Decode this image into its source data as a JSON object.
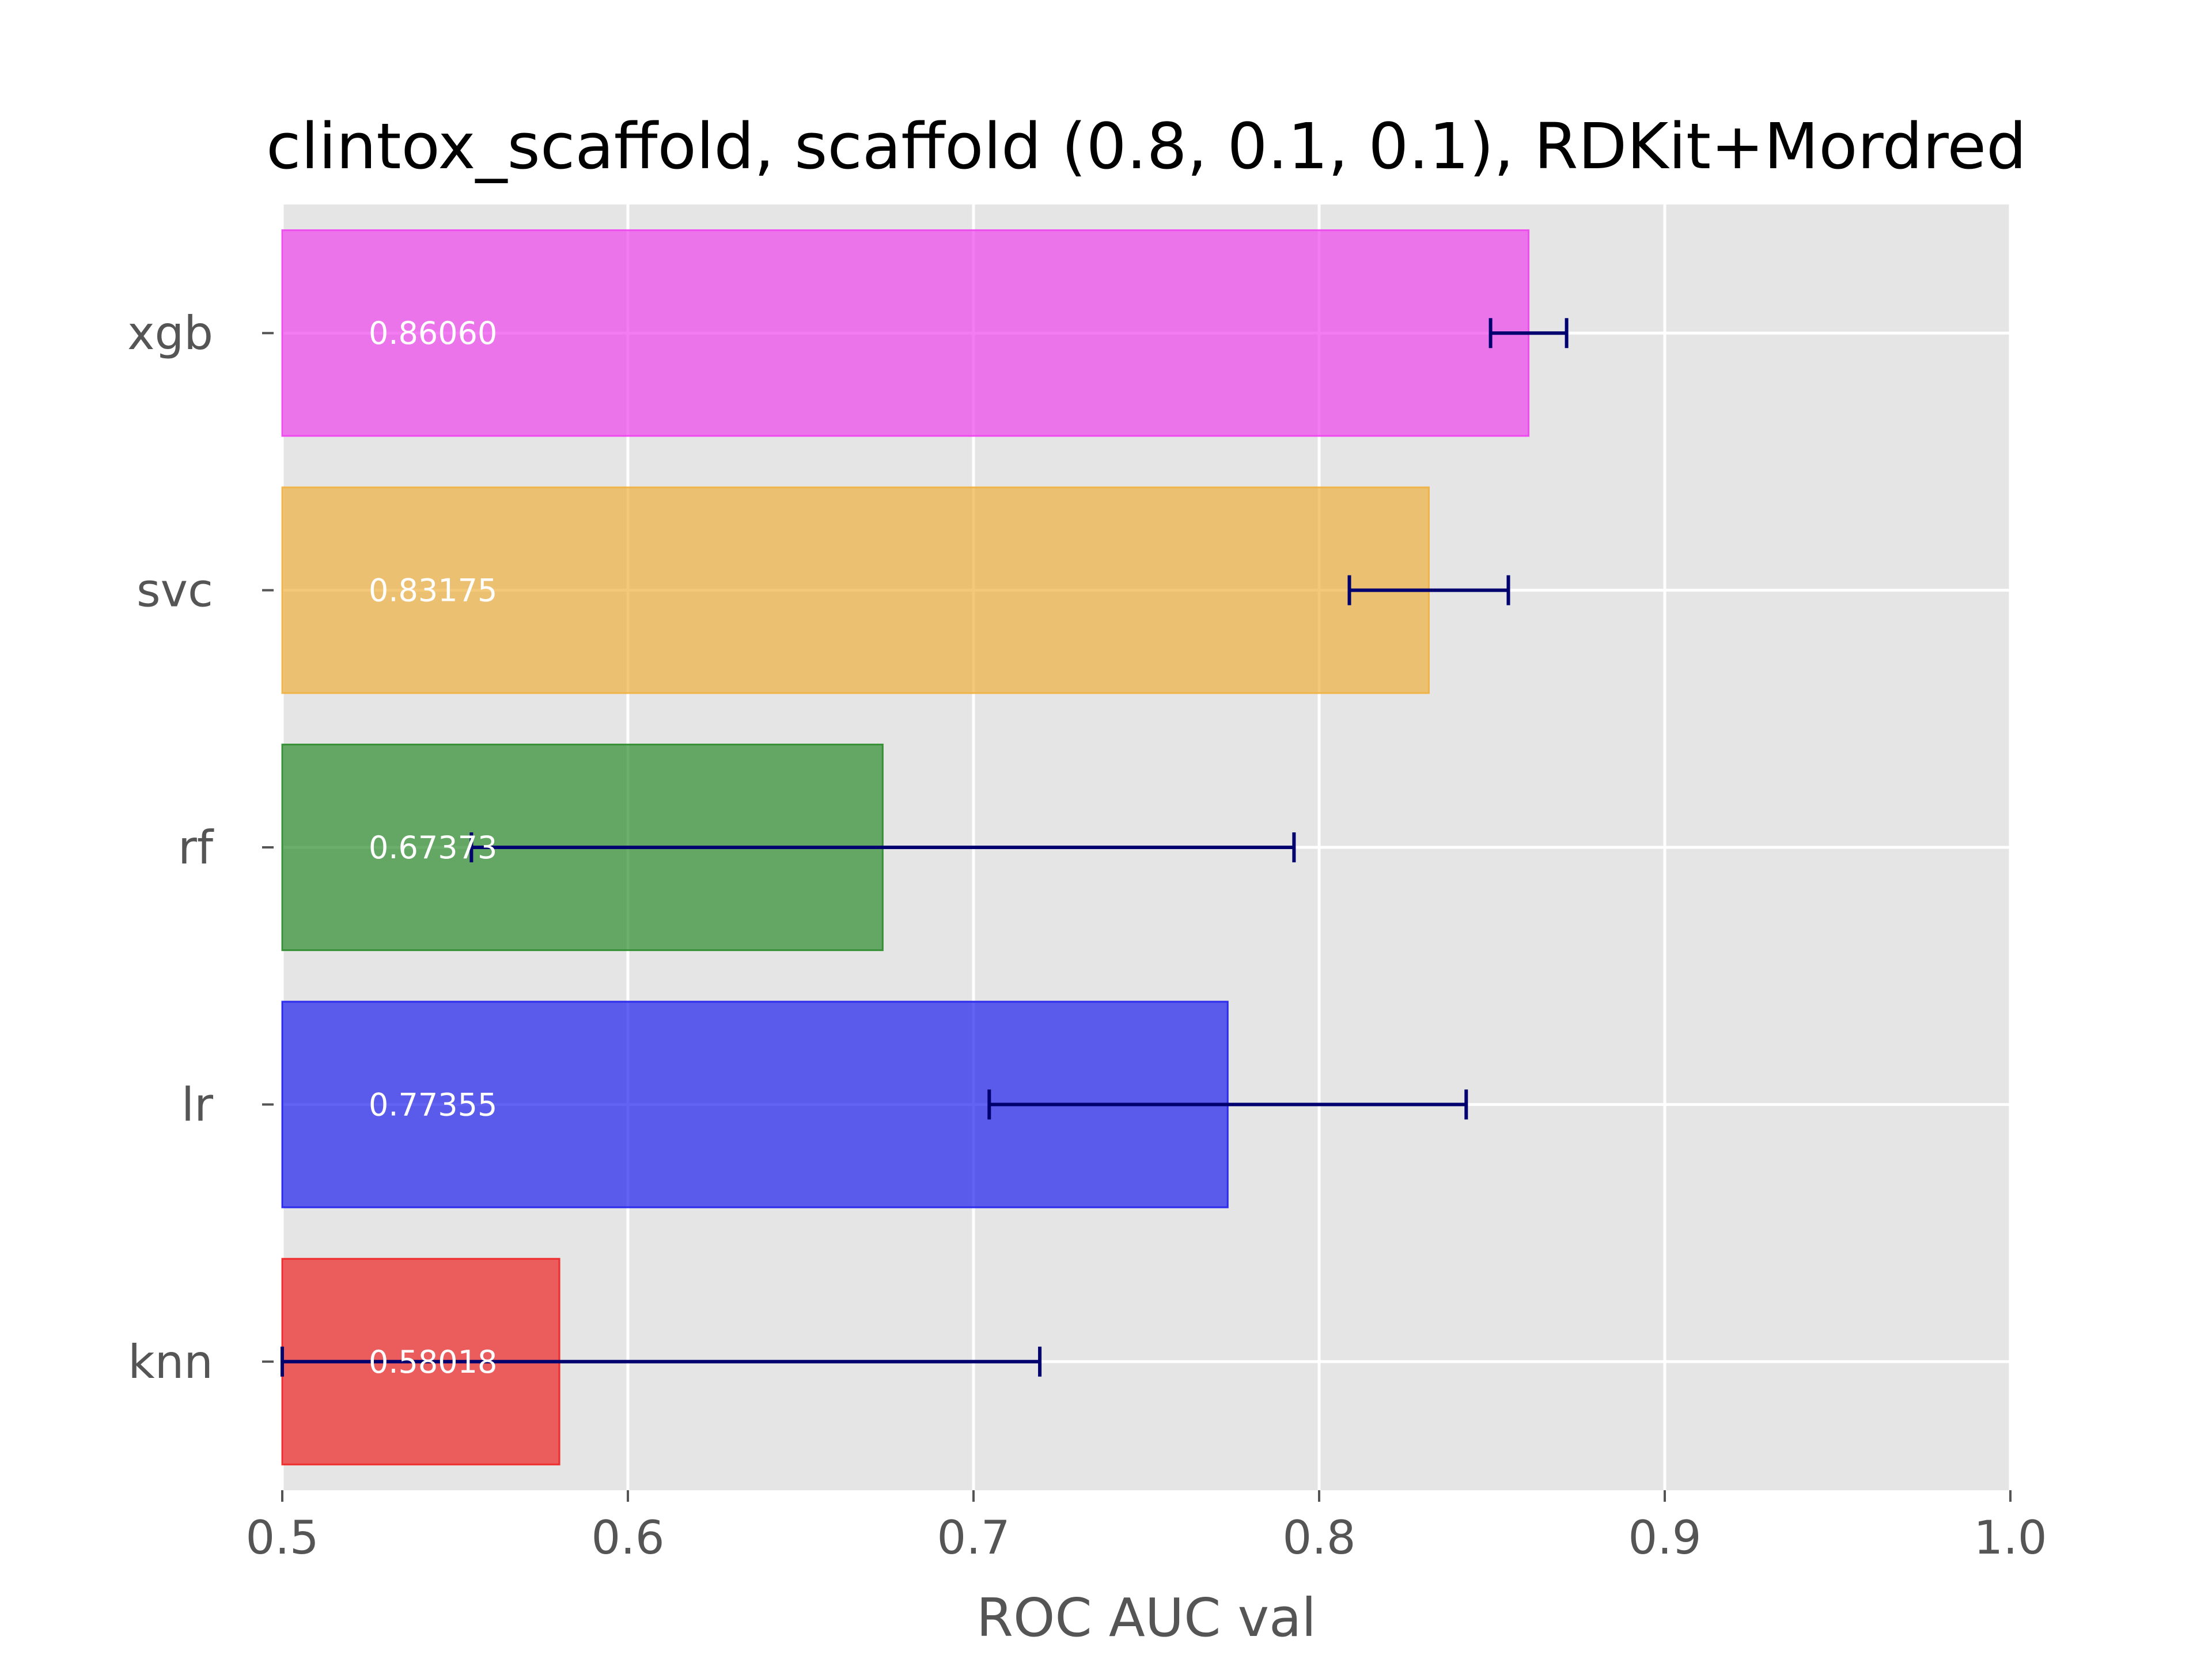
{
  "chart_data": {
    "type": "bar",
    "orientation": "horizontal",
    "title": "clintox_scaffold, scaffold (0.8, 0.1, 0.1), RDKit+Mordred",
    "xlabel": "ROC AUC val",
    "ylabel": "",
    "xlim": [
      0.5,
      1.0
    ],
    "xticks": [
      0.5,
      0.6,
      0.7,
      0.8,
      0.9,
      1.0
    ],
    "xtick_labels": [
      "0.5",
      "0.6",
      "0.7",
      "0.8",
      "0.9",
      "1.0"
    ],
    "grid": true,
    "categories": [
      "xgb",
      "svc",
      "rf",
      "lr",
      "knn"
    ],
    "values": [
      0.8606,
      0.83175,
      0.67373,
      0.77355,
      0.58018
    ],
    "value_labels": [
      "0.86060",
      "0.83175",
      "0.67373",
      "0.77355",
      "0.58018"
    ],
    "errors": [
      0.011,
      0.023,
      0.119,
      0.069,
      0.139
    ],
    "colors": [
      "#ee44ee",
      "#f0b040",
      "#2e8b2e",
      "#2020ee",
      "#ee2222"
    ],
    "error_color": "#00006e",
    "background_color": "#e5e5e5"
  }
}
